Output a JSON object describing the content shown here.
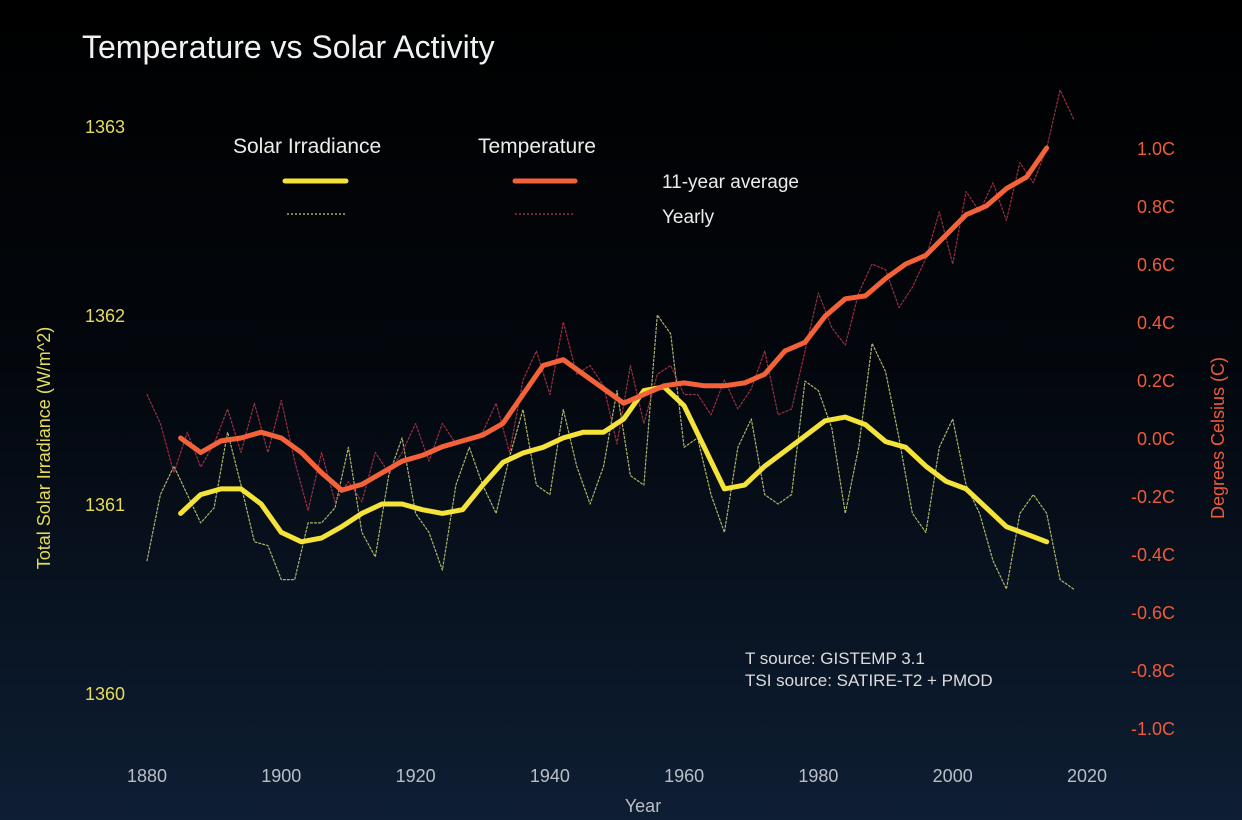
{
  "chart_data": {
    "type": "line",
    "title": "Temperature vs Solar Activity",
    "xlabel": "Year",
    "ylabel_left": "Total Solar Irradiance (W/m^2)",
    "ylabel_right": "Degrees Celsius (C)",
    "xlim": [
      1880,
      2020
    ],
    "ylim_left": [
      1360,
      1363
    ],
    "ylim_right": [
      -1.0,
      1.0
    ],
    "x_ticks": [
      "1880",
      "1900",
      "1920",
      "1940",
      "1960",
      "1980",
      "2000",
      "2020"
    ],
    "y_left_ticks": [
      "1360",
      "1361",
      "1362",
      "1363"
    ],
    "y_right_ticks": [
      "-1.0C",
      "-0.8C",
      "-0.6C",
      "-0.4C",
      "-0.2C",
      "0.0C",
      "0.2C",
      "0.4C",
      "0.6C",
      "0.8C",
      "1.0C"
    ],
    "legend": {
      "placement": "top",
      "solar_label": "Solar Irradiance",
      "temperature_label": "Temperature",
      "avg_label": "11-year average",
      "yearly_label": "Yearly"
    },
    "annotations": [
      "T source: GISTEMP 3.1",
      "TSI source: SATIRE-T2 + PMOD"
    ],
    "colors": {
      "solar": "#f5e33a",
      "solar_yearly": "#c9d27a",
      "temperature": "#f4623a",
      "temperature_yearly": "#b8344a",
      "left_axis": "#e6dc5a",
      "right_axis": "#ef5a3c",
      "text": "#e8e8e8",
      "muted": "#b9bfc8"
    },
    "series": [
      {
        "name": "Solar Irradiance 11-year average",
        "axis": "left",
        "x": [
          1885,
          1888,
          1891,
          1894,
          1897,
          1900,
          1903,
          1906,
          1909,
          1912,
          1915,
          1918,
          1921,
          1924,
          1927,
          1930,
          1933,
          1936,
          1939,
          1942,
          1945,
          1948,
          1951,
          1954,
          1957,
          1960,
          1963,
          1966,
          1969,
          1972,
          1975,
          1978,
          1981,
          1984,
          1987,
          1990,
          1993,
          1996,
          1999,
          2002,
          2005,
          2008,
          2011,
          2014
        ],
        "y": [
          1360.95,
          1361.05,
          1361.08,
          1361.08,
          1361.0,
          1360.85,
          1360.8,
          1360.82,
          1360.88,
          1360.95,
          1361.0,
          1361.0,
          1360.97,
          1360.95,
          1360.97,
          1361.1,
          1361.22,
          1361.27,
          1361.3,
          1361.35,
          1361.38,
          1361.38,
          1361.45,
          1361.6,
          1361.62,
          1361.52,
          1361.3,
          1361.08,
          1361.1,
          1361.2,
          1361.28,
          1361.36,
          1361.44,
          1361.46,
          1361.42,
          1361.33,
          1361.3,
          1361.2,
          1361.12,
          1361.08,
          1360.98,
          1360.88,
          1360.84,
          1360.8
        ]
      },
      {
        "name": "Solar Irradiance yearly",
        "axis": "left",
        "x": [
          1880,
          1882,
          1884,
          1886,
          1888,
          1890,
          1892,
          1894,
          1896,
          1898,
          1900,
          1902,
          1904,
          1906,
          1908,
          1910,
          1912,
          1914,
          1916,
          1918,
          1920,
          1922,
          1924,
          1926,
          1928,
          1930,
          1932,
          1934,
          1936,
          1938,
          1940,
          1942,
          1944,
          1946,
          1948,
          1950,
          1952,
          1954,
          1956,
          1958,
          1960,
          1962,
          1964,
          1966,
          1968,
          1970,
          1972,
          1974,
          1976,
          1978,
          1980,
          1982,
          1984,
          1986,
          1988,
          1990,
          1992,
          1994,
          1996,
          1998,
          2000,
          2002,
          2004,
          2006,
          2008,
          2010,
          2012,
          2014,
          2016,
          2018
        ],
        "y": [
          1360.7,
          1361.05,
          1361.2,
          1361.05,
          1360.9,
          1360.98,
          1361.38,
          1361.1,
          1360.8,
          1360.78,
          1360.6,
          1360.6,
          1360.9,
          1360.9,
          1360.98,
          1361.3,
          1360.85,
          1360.72,
          1361.15,
          1361.35,
          1360.95,
          1360.85,
          1360.65,
          1361.1,
          1361.3,
          1361.1,
          1360.95,
          1361.25,
          1361.5,
          1361.1,
          1361.05,
          1361.5,
          1361.2,
          1361.0,
          1361.2,
          1361.6,
          1361.15,
          1361.1,
          1362.0,
          1361.9,
          1361.3,
          1361.35,
          1361.05,
          1360.85,
          1361.3,
          1361.45,
          1361.05,
          1361.0,
          1361.05,
          1361.65,
          1361.6,
          1361.4,
          1360.95,
          1361.3,
          1361.85,
          1361.7,
          1361.35,
          1360.95,
          1360.85,
          1361.3,
          1361.45,
          1361.1,
          1360.95,
          1360.7,
          1360.55,
          1360.95,
          1361.05,
          1360.95,
          1360.6,
          1360.55
        ]
      },
      {
        "name": "Temperature 11-year average",
        "axis": "right",
        "x": [
          1885,
          1888,
          1891,
          1894,
          1897,
          1900,
          1903,
          1906,
          1909,
          1912,
          1915,
          1918,
          1921,
          1924,
          1927,
          1930,
          1933,
          1936,
          1939,
          1942,
          1945,
          1948,
          1951,
          1954,
          1957,
          1960,
          1963,
          1966,
          1969,
          1972,
          1975,
          1978,
          1981,
          1984,
          1987,
          1990,
          1993,
          1996,
          1999,
          2002,
          2005,
          2008,
          2011,
          2014
        ],
        "y": [
          0.0,
          -0.05,
          -0.01,
          0.0,
          0.02,
          0.0,
          -0.05,
          -0.12,
          -0.18,
          -0.16,
          -0.12,
          -0.08,
          -0.06,
          -0.03,
          -0.01,
          0.01,
          0.05,
          0.15,
          0.25,
          0.27,
          0.22,
          0.17,
          0.12,
          0.15,
          0.18,
          0.19,
          0.18,
          0.18,
          0.19,
          0.22,
          0.3,
          0.33,
          0.42,
          0.48,
          0.49,
          0.55,
          0.6,
          0.63,
          0.7,
          0.77,
          0.8,
          0.86,
          0.9,
          1.0
        ]
      },
      {
        "name": "Temperature yearly",
        "axis": "right",
        "x": [
          1880,
          1882,
          1884,
          1886,
          1888,
          1890,
          1892,
          1894,
          1896,
          1898,
          1900,
          1902,
          1904,
          1906,
          1908,
          1910,
          1912,
          1914,
          1916,
          1918,
          1920,
          1922,
          1924,
          1926,
          1928,
          1930,
          1932,
          1934,
          1936,
          1938,
          1940,
          1942,
          1944,
          1946,
          1948,
          1950,
          1952,
          1954,
          1956,
          1958,
          1960,
          1962,
          1964,
          1966,
          1968,
          1970,
          1972,
          1974,
          1976,
          1978,
          1980,
          1982,
          1984,
          1986,
          1988,
          1990,
          1992,
          1994,
          1996,
          1998,
          2000,
          2002,
          2004,
          2006,
          2008,
          2010,
          2012,
          2014,
          2016,
          2018
        ],
        "y": [
          0.15,
          0.05,
          -0.12,
          0.02,
          -0.1,
          -0.02,
          0.1,
          -0.05,
          0.12,
          -0.05,
          0.13,
          -0.08,
          -0.25,
          -0.05,
          -0.22,
          -0.15,
          -0.22,
          -0.05,
          -0.12,
          -0.05,
          0.05,
          -0.08,
          0.05,
          -0.02,
          0.0,
          0.02,
          0.12,
          -0.05,
          0.2,
          0.3,
          0.15,
          0.4,
          0.22,
          0.25,
          0.18,
          -0.02,
          0.25,
          0.05,
          0.22,
          0.25,
          0.15,
          0.15,
          0.08,
          0.2,
          0.1,
          0.17,
          0.3,
          0.08,
          0.1,
          0.3,
          0.5,
          0.38,
          0.32,
          0.5,
          0.6,
          0.58,
          0.45,
          0.52,
          0.62,
          0.78,
          0.6,
          0.85,
          0.78,
          0.88,
          0.75,
          0.95,
          0.88,
          1.0,
          1.2,
          1.1
        ]
      }
    ]
  }
}
